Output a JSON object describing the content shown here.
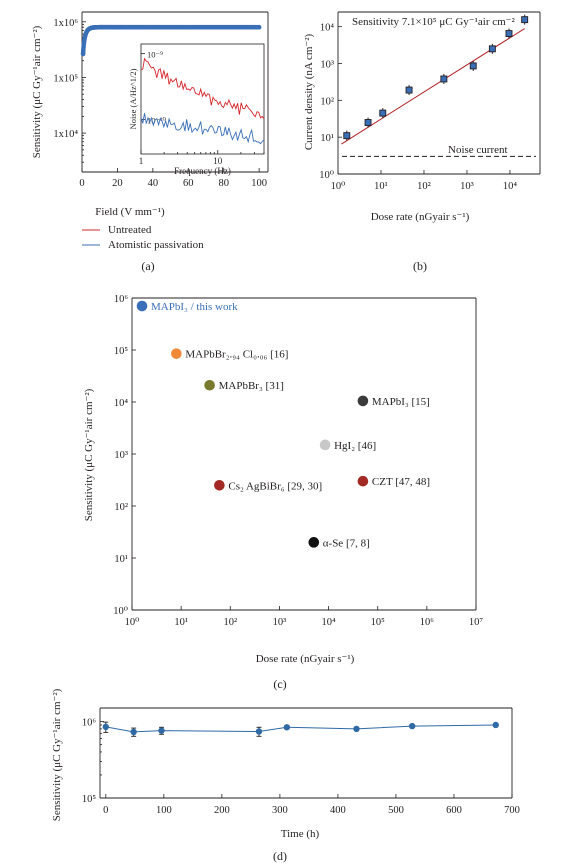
{
  "panels": {
    "a": "(a)",
    "b": "(b)",
    "c": "(c)",
    "d": "(d)"
  },
  "chart_data": [
    {
      "id": "a",
      "type": "scatter",
      "xlabel": "Field (V mm⁻¹)",
      "ylabel": "Sensitivity (μC Gy⁻¹air cm⁻²)",
      "xlim": [
        0,
        105
      ],
      "ylim": [
        2000,
        1500000
      ],
      "yscale": "log",
      "xticks": [
        0,
        20,
        40,
        60,
        80,
        100
      ],
      "yticks": [
        {
          "value": 10000,
          "label": "1x10⁴"
        },
        {
          "value": 100000,
          "label": "1x10⁵"
        },
        {
          "value": 1000000,
          "label": "1x10⁶"
        }
      ],
      "color": "#3a6fb7",
      "curve": {
        "A": 800000,
        "tau": 1.5,
        "x_start": 0.6,
        "x_end": 100,
        "n": 170
      },
      "inset": {
        "xlabel": "Frequency (Hz)",
        "ylabel": "Noise (A/Hz^1/2)",
        "xlim": [
          1,
          40
        ],
        "ylim": [
          3e-11,
          1.4e-09
        ],
        "xscale": "log",
        "yscale": "log",
        "xticks": [
          {
            "value": 1,
            "label": "1"
          },
          {
            "value": 10,
            "label": "10"
          }
        ],
        "yticks": [
          {
            "value": 1e-09,
            "label": "10⁻⁹"
          },
          {
            "value": 1e-10,
            "label": "10⁻¹⁰"
          }
        ],
        "series": [
          {
            "name": "Untreated",
            "color": "#d7262b"
          },
          {
            "name": "Atomistic passivation",
            "color": "#3a6fb7"
          }
        ]
      }
    },
    {
      "id": "b",
      "type": "scatter",
      "annotation": "Sensitivity 7.1×10⁵ μC Gy⁻¹air cm⁻²",
      "noise_label": "Noise current",
      "noise_level": 3,
      "xlabel": "Dose rate (nGyair s⁻¹)",
      "ylabel": "Current density (nA cm⁻²)",
      "xscale": "log",
      "yscale": "log",
      "xlim": [
        1,
        50000
      ],
      "ylim": [
        1,
        25000
      ],
      "xticks": [
        {
          "value": 1,
          "label": "10⁰"
        },
        {
          "value": 10,
          "label": "10¹"
        },
        {
          "value": 100,
          "label": "10²"
        },
        {
          "value": 1000,
          "label": "10³"
        },
        {
          "value": 10000,
          "label": "10⁴"
        }
      ],
      "yticks": [
        {
          "value": 1,
          "label": "10⁰"
        },
        {
          "value": 10,
          "label": "10¹"
        },
        {
          "value": 100,
          "label": "10²"
        },
        {
          "value": 1000,
          "label": "10³"
        },
        {
          "value": 10000,
          "label": "10⁴"
        }
      ],
      "points": [
        {
          "x": 1.6,
          "y": 11
        },
        {
          "x": 5,
          "y": 25
        },
        {
          "x": 11,
          "y": 45
        },
        {
          "x": 45,
          "y": 190
        },
        {
          "x": 290,
          "y": 380
        },
        {
          "x": 1400,
          "y": 860
        },
        {
          "x": 3900,
          "y": 2500
        },
        {
          "x": 9500,
          "y": 6500
        },
        {
          "x": 22000,
          "y": 15500
        }
      ],
      "fit": {
        "x": [
          1.2,
          22000
        ],
        "y": [
          6.5,
          8900
        ]
      }
    },
    {
      "id": "c",
      "type": "scatter",
      "xlabel": "Dose rate (nGyair s⁻¹)",
      "ylabel": "Sensitivity (μC Gy⁻¹air cm⁻²)",
      "xscale": "log",
      "yscale": "log",
      "xlim": [
        1,
        10000000
      ],
      "ylim": [
        1,
        1000000
      ],
      "xticks": [
        {
          "value": 1,
          "label": "10⁰"
        },
        {
          "value": 10,
          "label": "10¹"
        },
        {
          "value": 100,
          "label": "10²"
        },
        {
          "value": 1000,
          "label": "10³"
        },
        {
          "value": 10000,
          "label": "10⁴"
        },
        {
          "value": 100000,
          "label": "10⁵"
        },
        {
          "value": 1000000,
          "label": "10⁶"
        },
        {
          "value": 10000000,
          "label": "10⁷"
        }
      ],
      "yticks": [
        {
          "value": 1,
          "label": "10⁰"
        },
        {
          "value": 10,
          "label": "10¹"
        },
        {
          "value": 100,
          "label": "10²"
        },
        {
          "value": 1000,
          "label": "10³"
        },
        {
          "value": 10000,
          "label": "10⁴"
        },
        {
          "value": 100000,
          "label": "10⁵"
        },
        {
          "value": 1000000,
          "label": "10⁶"
        }
      ],
      "points": [
        {
          "label": "MAPbI₃ / this work",
          "x": 1.6,
          "y": 700000,
          "color": "#3a6fb7",
          "label_color": "#3a6fb7"
        },
        {
          "label": "MAPbBr₂.₉₄ Cl₀.₀₆ [16]",
          "x": 8,
          "y": 85000,
          "color": "#f08a3a",
          "label_color": "#231f20"
        },
        {
          "label": "MAPbBr₃ [31]",
          "x": 38,
          "y": 21000,
          "color": "#7a7a2f",
          "label_color": "#231f20"
        },
        {
          "label": "MAPbI₃ [15]",
          "x": 50000,
          "y": 10500,
          "color": "#3b3b3b",
          "label_color": "#231f20"
        },
        {
          "label": "HgI₂ [46]",
          "x": 8500,
          "y": 1500,
          "color": "#c8c8c8",
          "label_color": "#231f20"
        },
        {
          "label": "CZT [47, 48]",
          "x": 50000,
          "y": 300,
          "color": "#a32a24",
          "label_color": "#231f20"
        },
        {
          "label": "Cs₂ AgBiBr₆ [29, 30]",
          "x": 60,
          "y": 250,
          "color": "#a32a24",
          "label_color": "#231f20"
        },
        {
          "label": "α-Se [7, 8]",
          "x": 5000,
          "y": 20,
          "color": "#111111",
          "label_color": "#231f20"
        }
      ]
    },
    {
      "id": "d",
      "type": "line",
      "xlabel": "Time (h)",
      "ylabel": "Sensitivity (μC Gy⁻¹air cm⁻²)",
      "xlim": [
        -10,
        700
      ],
      "ylim": [
        100000,
        1500000
      ],
      "yscale": "log",
      "color": "#2f6aa5",
      "xticks": [
        0,
        100,
        200,
        300,
        400,
        500,
        600,
        700
      ],
      "yticks": [
        {
          "value": 100000,
          "label": "10⁵"
        },
        {
          "value": 1000000,
          "label": "10⁶"
        }
      ],
      "points": [
        {
          "x": 0,
          "y": 850000,
          "err": 130000
        },
        {
          "x": 48,
          "y": 730000,
          "err": 90000
        },
        {
          "x": 96,
          "y": 760000,
          "err": 80000
        },
        {
          "x": 264,
          "y": 740000,
          "err": 100000
        },
        {
          "x": 312,
          "y": 840000,
          "err": 40000
        },
        {
          "x": 432,
          "y": 800000,
          "err": 40000
        },
        {
          "x": 528,
          "y": 870000,
          "err": 30000
        },
        {
          "x": 672,
          "y": 900000,
          "err": 30000
        }
      ]
    }
  ]
}
